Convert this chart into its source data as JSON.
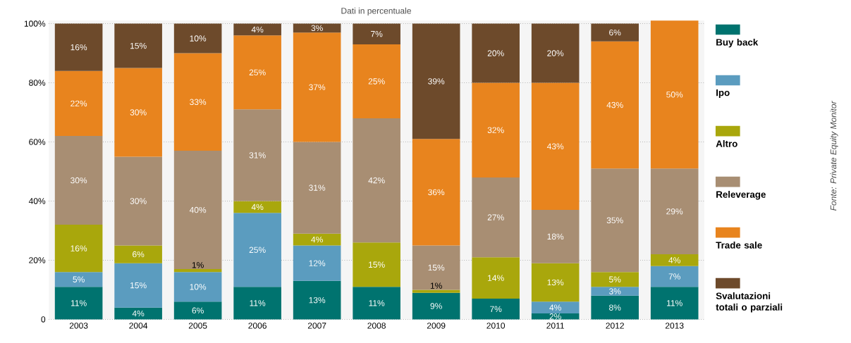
{
  "chart_data": {
    "type": "bar",
    "stacked": true,
    "title": "Dati in percentuale",
    "categories": [
      "2003",
      "2004",
      "2005",
      "2006",
      "2007",
      "2008",
      "2009",
      "2010",
      "2011",
      "2012",
      "2013"
    ],
    "series": [
      {
        "name": "Buy back",
        "color": "#00736f",
        "values": [
          11,
          4,
          6,
          11,
          13,
          11,
          9,
          7,
          2,
          8,
          11
        ],
        "value_labels": [
          "11%",
          "4%",
          "6%",
          "11%",
          "13%",
          "11%",
          "9%",
          "7%",
          "2%",
          "8%",
          "11%"
        ]
      },
      {
        "name": "Ipo",
        "color": "#5b9cbf",
        "values": [
          5,
          15,
          10,
          25,
          12,
          null,
          null,
          null,
          4,
          3,
          7
        ],
        "value_labels": [
          "5%",
          "15%",
          "10%",
          "25%",
          "12%",
          null,
          null,
          null,
          "4%",
          "3%",
          "7%"
        ]
      },
      {
        "name": "Altro",
        "color": "#a9a70c",
        "values": [
          16,
          6,
          1,
          4,
          4,
          15,
          1,
          14,
          13,
          5,
          4
        ],
        "value_labels": [
          "16%",
          "6%",
          "1%",
          "4%",
          "4%",
          "15%",
          "1%",
          "14%",
          "13%",
          "5%",
          "4%"
        ]
      },
      {
        "name": "Releverage",
        "color": "#a88e73",
        "values": [
          30,
          30,
          40,
          31,
          31,
          42,
          15,
          27,
          18,
          35,
          29
        ],
        "value_labels": [
          "30%",
          "30%",
          "40%",
          "31%",
          "31%",
          "42%",
          "15%",
          "27%",
          "18%",
          "35%",
          "29%"
        ]
      },
      {
        "name": "Trade sale",
        "color": "#e8841e",
        "values": [
          22,
          30,
          33,
          25,
          37,
          25,
          36,
          32,
          43,
          43,
          50
        ],
        "value_labels": [
          "22%",
          "30%",
          "33%",
          "25%",
          "37%",
          "25%",
          "36%",
          "32%",
          "43%",
          "43%",
          "50%"
        ]
      },
      {
        "name": "Svalutazioni totali o parziali",
        "color": "#6d4a2b",
        "values": [
          16,
          15,
          10,
          4,
          3,
          7,
          39,
          20,
          20,
          6,
          null
        ],
        "value_labels": [
          "16%",
          "15%",
          "10%",
          "4%",
          "3%",
          "7%",
          "39%",
          "20%",
          "20%",
          "6%",
          null
        ]
      }
    ],
    "ylim": [
      0,
      101
    ],
    "yticks": [
      0,
      {
        "value": 20,
        "label": "20%"
      },
      {
        "value": 40,
        "label": "40%"
      },
      {
        "value": 60,
        "label": "60%"
      },
      {
        "value": 80,
        "label": "80%"
      },
      {
        "value": 100,
        "label": "100%"
      }
    ],
    "grid": "y",
    "line_style": "dotted",
    "legend": "right",
    "annotations": [
      "Fonte: Private Equity Monitor"
    ]
  }
}
